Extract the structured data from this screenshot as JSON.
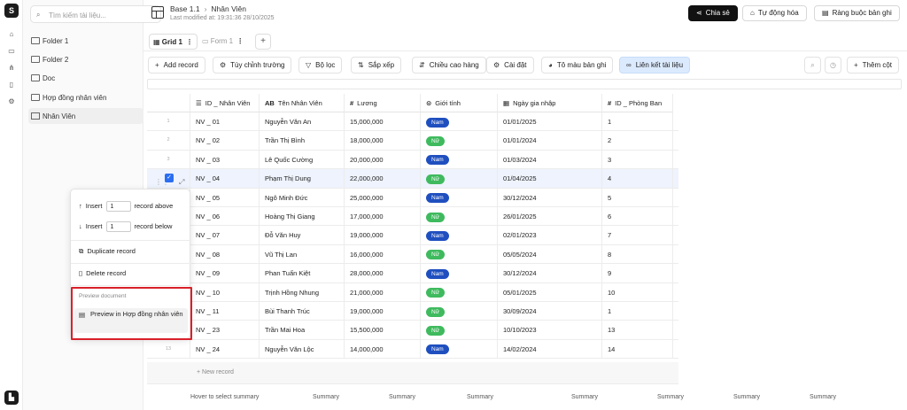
{
  "rail": {
    "icons": [
      "logo-icon",
      "home-icon",
      "inbox-icon",
      "org-icon",
      "trash-icon",
      "settings-icon"
    ]
  },
  "sidebar": {
    "search_placeholder": "Tìm kiếm tài liệu...",
    "items": [
      {
        "label": "Folder 1",
        "icon": "folder-icon"
      },
      {
        "label": "Folder 2",
        "icon": "folder-icon"
      },
      {
        "label": "Doc",
        "icon": "folder-icon"
      },
      {
        "label": "Hợp đồng nhân viên",
        "icon": "folder-icon"
      },
      {
        "label": "Nhân Viên",
        "icon": "table-icon"
      }
    ]
  },
  "header": {
    "base": "Base 1.1",
    "page": "Nhân Viên",
    "modified": "Last modified at: 19:31:36 28/10/2025",
    "share": "Chia sẻ",
    "automation": "Tự động hóa",
    "constraints": "Ràng buộc bản ghi"
  },
  "tabs": {
    "grid": "Grid 1",
    "form": "Form 1"
  },
  "toolbar": {
    "add_record": "Add record",
    "customize": "Tùy chỉnh trường",
    "filter": "Bộ lọc",
    "sort": "Sắp xếp",
    "row_height": "Chiều cao hàng",
    "settings": "Cài đặt",
    "color": "Tô màu bản ghi",
    "link_doc": "Liên kết tài liệu",
    "add_column": "Thêm cột"
  },
  "columns": [
    "ID _ Nhân Viên",
    "Tên Nhân Viên",
    "Lương",
    "Giới tính",
    "Ngày gia nhập",
    "ID _ Phòng Ban"
  ],
  "rows": [
    {
      "n": "1",
      "id": "NV _ 01",
      "name": "Nguyễn Văn An",
      "salary": "15,000,000",
      "gender": "Nam",
      "date": "01/01/2025",
      "dept": "1"
    },
    {
      "n": "2",
      "id": "NV _ 02",
      "name": "Trần Thị Bình",
      "salary": "18,000,000",
      "gender": "Nữ",
      "date": "01/01/2024",
      "dept": "2"
    },
    {
      "n": "3",
      "id": "NV _ 03",
      "name": "Lê Quốc Cường",
      "salary": "20,000,000",
      "gender": "Nam",
      "date": "01/03/2024",
      "dept": "3"
    },
    {
      "n": "4",
      "id": "NV _ 04",
      "name": "Phạm Thị Dung",
      "salary": "22,000,000",
      "gender": "Nữ",
      "date": "01/04/2025",
      "dept": "4"
    },
    {
      "n": "5",
      "id": "NV _ 05",
      "name": "Ngô Minh Đức",
      "salary": "25,000,000",
      "gender": "Nam",
      "date": "30/12/2024",
      "dept": "5"
    },
    {
      "n": "6",
      "id": "NV _ 06",
      "name": "Hoàng Thị Giang",
      "salary": "17,000,000",
      "gender": "Nữ",
      "date": "26/01/2025",
      "dept": "6"
    },
    {
      "n": "7",
      "id": "NV _ 07",
      "name": "Đỗ Văn Huy",
      "salary": "19,000,000",
      "gender": "Nam",
      "date": "02/01/2023",
      "dept": "7"
    },
    {
      "n": "8",
      "id": "NV _ 08",
      "name": "Vũ Thị Lan",
      "salary": "16,000,000",
      "gender": "Nữ",
      "date": "05/05/2024",
      "dept": "8"
    },
    {
      "n": "9",
      "id": "NV _ 09",
      "name": "Phan Tuấn Kiệt",
      "salary": "28,000,000",
      "gender": "Nam",
      "date": "30/12/2024",
      "dept": "9"
    },
    {
      "n": "10",
      "id": "NV _ 10",
      "name": "Trịnh Hồng Nhung",
      "salary": "21,000,000",
      "gender": "Nữ",
      "date": "05/01/2025",
      "dept": "10"
    },
    {
      "n": "11",
      "id": "NV _ 11",
      "name": "Bùi Thanh Trúc",
      "salary": "19,000,000",
      "gender": "Nữ",
      "date": "30/09/2024",
      "dept": "1"
    },
    {
      "n": "12",
      "id": "NV _ 23",
      "name": "Trần Mai Hoa",
      "salary": "15,500,000",
      "gender": "Nữ",
      "date": "10/10/2023",
      "dept": "13"
    },
    {
      "n": "13",
      "id": "NV _ 24",
      "name": "Nguyễn Văn Lộc",
      "salary": "14,000,000",
      "gender": "Nam",
      "date": "14/02/2024",
      "dept": "14"
    }
  ],
  "selected_row": "4",
  "new_record": "New record",
  "summary": {
    "hover": "Hover to select summary",
    "label": "Summary"
  },
  "menu": {
    "insert": "Insert",
    "above_count": "1",
    "above": "record above",
    "below_count": "1",
    "below": "record below",
    "duplicate": "Duplicate record",
    "delete": "Delete record",
    "section": "Preview document",
    "preview": "Preview in Hợp đồng nhân viên"
  }
}
